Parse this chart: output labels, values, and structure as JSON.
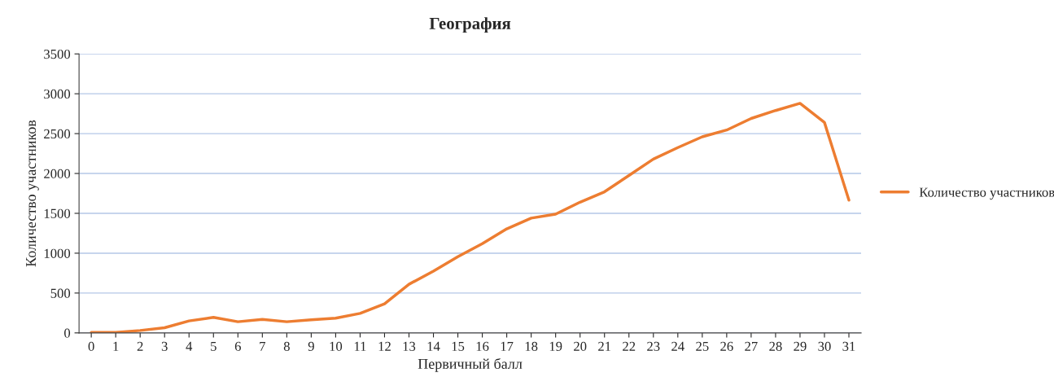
{
  "chart_data": {
    "type": "line",
    "title": "География",
    "xlabel": "Первичный балл",
    "ylabel": "Количество участников",
    "categories": [
      "0",
      "1",
      "2",
      "3",
      "4",
      "5",
      "6",
      "7",
      "8",
      "9",
      "10",
      "11",
      "12",
      "13",
      "14",
      "15",
      "16",
      "17",
      "18",
      "19",
      "20",
      "21",
      "22",
      "23",
      "24",
      "25",
      "26",
      "27",
      "28",
      "29",
      "30",
      "31"
    ],
    "series": [
      {
        "name": "Количество участников",
        "color": "#ed7d31",
        "values": [
          5,
          5,
          30,
          65,
          150,
          195,
          140,
          170,
          140,
          165,
          185,
          245,
          365,
          610,
          775,
          955,
          1120,
          1305,
          1440,
          1490,
          1640,
          1770,
          1975,
          2180,
          2325,
          2460,
          2545,
          2690,
          2790,
          2880,
          2640,
          1665
        ]
      }
    ],
    "ylim": [
      0,
      3500
    ],
    "yticks": [
      0,
      500,
      1000,
      1500,
      2000,
      2500,
      3000,
      3500
    ],
    "grid": "y",
    "legend": "right",
    "marker": "none",
    "line_style": "solid"
  }
}
